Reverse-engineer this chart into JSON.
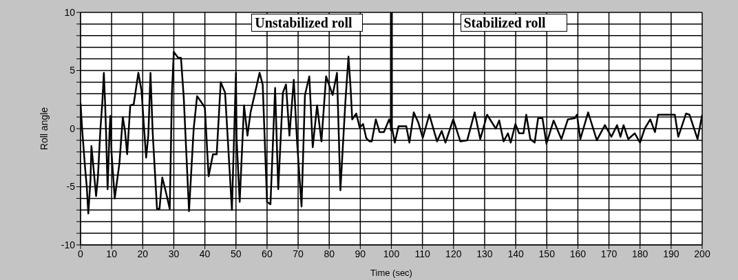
{
  "chart_data": {
    "type": "line",
    "xlabel": "Time (sec)",
    "ylabel": "Roll angle",
    "annotations": [
      "Unstabilized roll",
      "Stabilized roll"
    ],
    "x": [
      0,
      0.5,
      1.5,
      2,
      2.5,
      3.2,
      3.5,
      3.9,
      5,
      5.6,
      6.4,
      7,
      7.5,
      7.9,
      8.2,
      8.7,
      9.3,
      9.6,
      10,
      11,
      12.5,
      13.6,
      14.3,
      15,
      16,
      17.1,
      18.6,
      19.6,
      21.1,
      21.8,
      22.5,
      23.2,
      24.6,
      25.4,
      26.3,
      27.5,
      28.7,
      29.4,
      30,
      31.4,
      32.3,
      33.2,
      34.9,
      36.4,
      37.5,
      39.3,
      40,
      41.2,
      42.6,
      43.8,
      45.1,
      46.5,
      48.7,
      50,
      50.2,
      51.2,
      52.6,
      53.7,
      54.7,
      57.6,
      58.6,
      60,
      61.1,
      62.6,
      63.6,
      65.1,
      66.1,
      67.2,
      68.6,
      69.7,
      71.1,
      72.2,
      73.6,
      74.7,
      76.1,
      77.5,
      79,
      81.1,
      82.5,
      83.6,
      85.2,
      86.2,
      86.9,
      87.4,
      88.7,
      89.8,
      90.9,
      91.9,
      93,
      93.7,
      95,
      96.2,
      97.6,
      99.3,
      100.4,
      101.1,
      102.3,
      104.8,
      105.8,
      107.2,
      108.7,
      110.1,
      112.2,
      114.7,
      116.2,
      117.4,
      119.9,
      122.2,
      124.4,
      126.8,
      128.6,
      130.8,
      133.6,
      134.7,
      136.1,
      137.5,
      138.4,
      139.9,
      141.1,
      142.5,
      143.4,
      144.7,
      146.1,
      147.2,
      148.6,
      149.9,
      152.2,
      154.7,
      156.8,
      159,
      159.7,
      160.8,
      163.3,
      166.1,
      168.7,
      170.8,
      172.6,
      173.7,
      174.7,
      176.2,
      178.3,
      180,
      181.5,
      183.3,
      184.8,
      185.8,
      188.7,
      191.2,
      192.3,
      194.8,
      195.9,
      198.5,
      200
    ],
    "series": [
      {
        "color": "#000000",
        "values": [
          2.2,
          0,
          -3.5,
          -5,
          -7.3,
          -4.4,
          -1.5,
          -2.6,
          -5.8,
          -4.1,
          0,
          2.2,
          4.8,
          2.2,
          -0.2,
          -5.2,
          -0.4,
          1.1,
          -2.2,
          -6,
          -3,
          1,
          -0.2,
          -2.2,
          2,
          2.1,
          4.8,
          3.3,
          -2.5,
          -0.6,
          4.8,
          -0.3,
          -6.9,
          -6.9,
          -4.2,
          -5.5,
          -6.9,
          3.1,
          6.6,
          6.1,
          6.1,
          2.7,
          -7.1,
          0,
          2.8,
          2.1,
          1.8,
          -4.1,
          -2.2,
          -2.2,
          4,
          3.1,
          -7,
          4.8,
          -0.8,
          -6.3,
          2,
          -0.6,
          1.4,
          4.8,
          3.8,
          -6.3,
          -6.5,
          3.5,
          -5.2,
          3.1,
          3.8,
          -0.6,
          4.2,
          -1.3,
          -6.7,
          2.9,
          4.5,
          -1.6,
          2,
          -1.1,
          4.5,
          2.9,
          4.8,
          -5.3,
          2.3,
          6.2,
          3.4,
          0.8,
          1.3,
          0.1,
          0.4,
          -0.8,
          -1.1,
          -1.1,
          0.8,
          -0.3,
          -0.3,
          0.8,
          -0.2,
          -1.2,
          0.2,
          0.2,
          -1.2,
          1.4,
          0.5,
          -0.8,
          1.2,
          -1.1,
          -0.2,
          -1.2,
          0.8,
          -1.1,
          -1,
          1.4,
          -0.9,
          1.2,
          0,
          0.7,
          -1.1,
          -0.4,
          -1.2,
          0.4,
          -0.4,
          -0.4,
          1.2,
          -0.9,
          -1.2,
          0.9,
          0.9,
          -1.3,
          0.7,
          -0.9,
          0.8,
          0.9,
          1.2,
          -0.9,
          1.4,
          -1,
          0.3,
          -0.7,
          0.3,
          -0.7,
          0.3,
          -0.9,
          -0.4,
          -1.2,
          0,
          0.8,
          -0.3,
          1.2,
          1.2,
          1.2,
          -0.7,
          1.3,
          1.2,
          -0.9,
          1.2
        ]
      }
    ],
    "xlim": [
      0,
      200
    ],
    "xticks": [
      0,
      10,
      20,
      30,
      40,
      50,
      60,
      70,
      80,
      90,
      100,
      110,
      120,
      130,
      140,
      150,
      160,
      170,
      180,
      190,
      200
    ],
    "ylim": [
      -10,
      10
    ],
    "yticks": [
      -10,
      {
        "value": -9,
        "label": null
      },
      {
        "value": -8,
        "label": null
      },
      {
        "value": -7,
        "label": null
      },
      {
        "value": -6,
        "label": null
      },
      -5,
      {
        "value": -4,
        "label": null
      },
      {
        "value": -3,
        "label": null
      },
      {
        "value": -2,
        "label": null
      },
      {
        "value": -1,
        "label": null
      },
      0,
      {
        "value": 1,
        "label": null
      },
      {
        "value": 2,
        "label": null
      },
      {
        "value": 3,
        "label": null
      },
      {
        "value": 4,
        "label": null
      },
      5,
      {
        "value": 6,
        "label": null
      },
      {
        "value": 7,
        "label": null
      },
      {
        "value": 8,
        "label": null
      },
      {
        "value": 9,
        "label": null
      },
      10
    ],
    "ref_lines": [
      {
        "axis": "x",
        "value": 100,
        "color": "#000000"
      }
    ],
    "grid": true,
    "legend": false
  }
}
